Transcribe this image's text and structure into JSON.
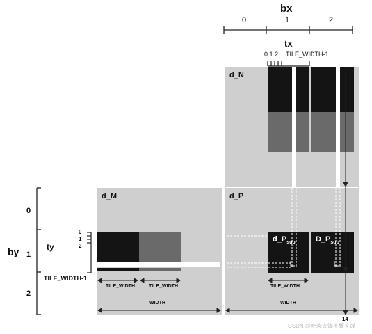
{
  "top": {
    "bx_label": "bx",
    "bx_ticks": [
      "0",
      "1",
      "2"
    ],
    "tx_label": "tx",
    "tx_sub_ticks": "0 1 2",
    "tx_last": "TILE_WIDTH-1"
  },
  "left": {
    "by_label": "by",
    "by_ticks": [
      "0",
      "1",
      "2"
    ],
    "ty_label": "ty",
    "ty_ticks": [
      "0",
      "1",
      "2"
    ],
    "ty_last": "TILE_WIDTH-1"
  },
  "matrices": {
    "n_label": "d_N",
    "m_label": "d_M",
    "p_label": "d_P",
    "psub1_main": "d_P",
    "psub1_sub": "sub",
    "psub2_main": "D_P",
    "psub2_sub": "sub"
  },
  "dims": {
    "tile_width": "TILE_WIDTH",
    "width": "WIDTH"
  },
  "corner_mark": "14",
  "watermark": "CSDN @吃肉夹馍不要夹馍",
  "colors": {
    "dark_tile": "#141414",
    "mid_tile": "#6a6a6a",
    "matrix_bg": "#cfcfcf",
    "line": "#222222"
  }
}
